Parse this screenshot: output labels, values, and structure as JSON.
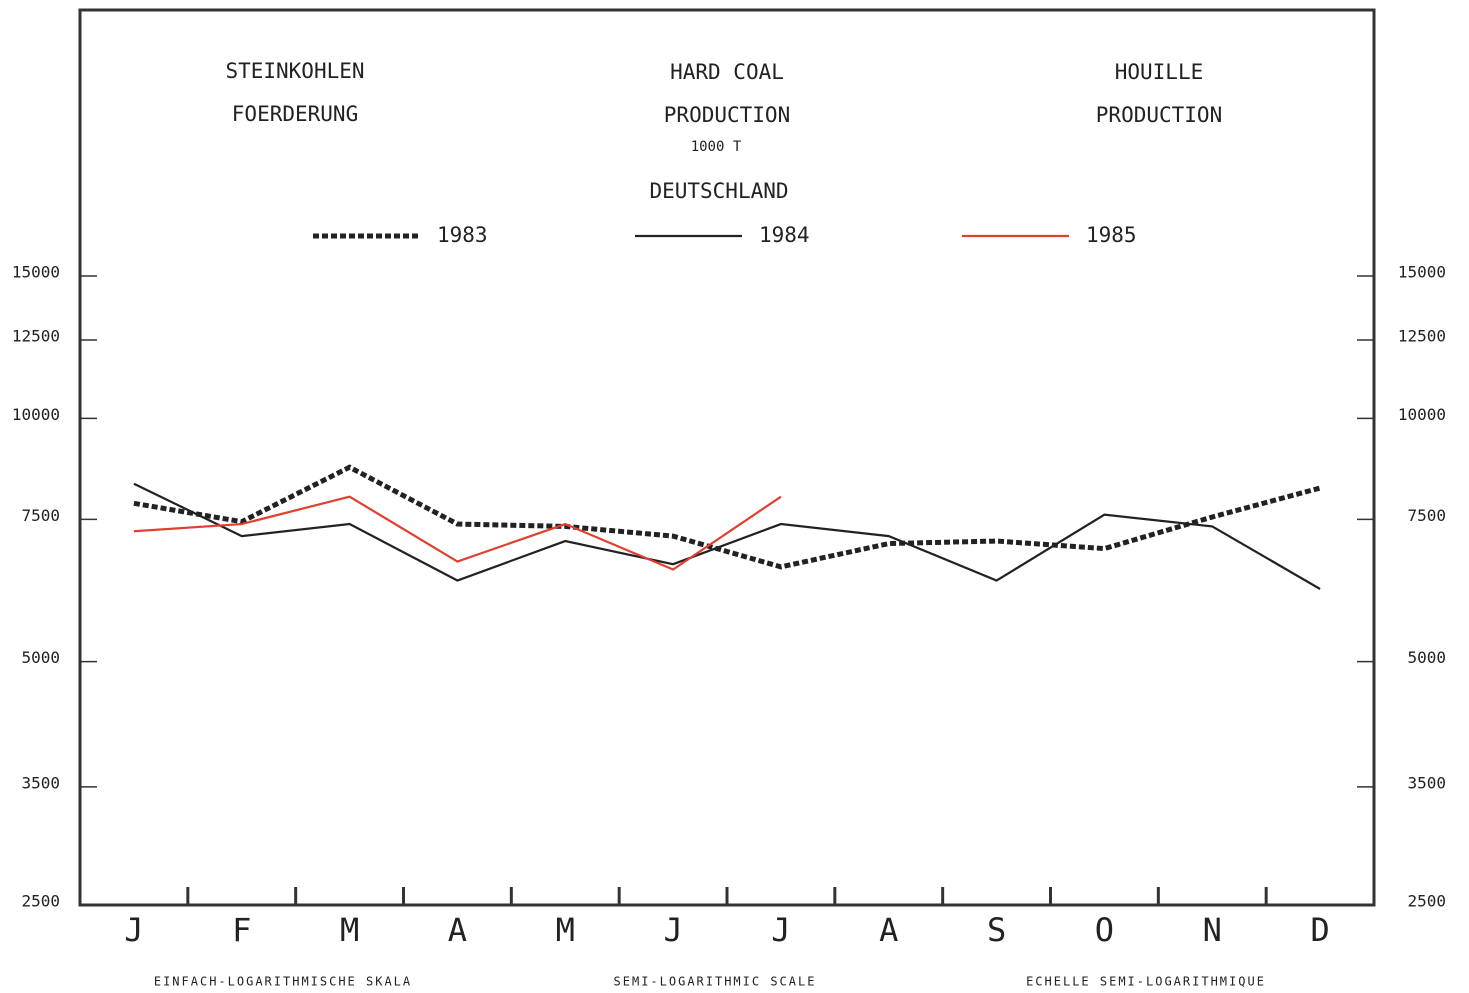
{
  "chart_data": {
    "type": "line",
    "title_de": [
      "STEINKOHLEN",
      "FOERDERUNG"
    ],
    "title_en": [
      "HARD COAL",
      "PRODUCTION"
    ],
    "unit": "1000 T",
    "region": "DEUTSCHLAND",
    "title_fr": [
      "HOUILLE",
      "PRODUCTION"
    ],
    "footers": [
      "EINFACH-LOGARITHMISCHE SKALA",
      "SEMI-LOGARITHMIC SCALE",
      "ECHELLE SEMI-LOGARITHMIQUE"
    ],
    "categories": [
      "J",
      "F",
      "M",
      "A",
      "M",
      "J",
      "J",
      "A",
      "S",
      "O",
      "N",
      "D"
    ],
    "log_scale": true,
    "ylim": [
      2500,
      32000
    ],
    "yticks": [
      2500,
      3500,
      5000,
      7500,
      10000,
      12500,
      15000
    ],
    "series": [
      {
        "name": "1983",
        "color": "#222222",
        "dashed": true,
        "values": [
          7850,
          7450,
          8700,
          7400,
          7350,
          7150,
          6550,
          7000,
          7050,
          6900,
          7550,
          8200
        ]
      },
      {
        "name": "1984",
        "color": "#222222",
        "values": [
          8300,
          7150,
          7400,
          6300,
          7050,
          6600,
          7400,
          7150,
          6300,
          7600,
          7350,
          6150
        ]
      },
      {
        "name": "1985",
        "color": "#e04030",
        "values": [
          7250,
          7400,
          8000,
          6650,
          7400,
          6500,
          8000,
          null,
          null,
          null,
          null,
          null
        ]
      }
    ]
  }
}
